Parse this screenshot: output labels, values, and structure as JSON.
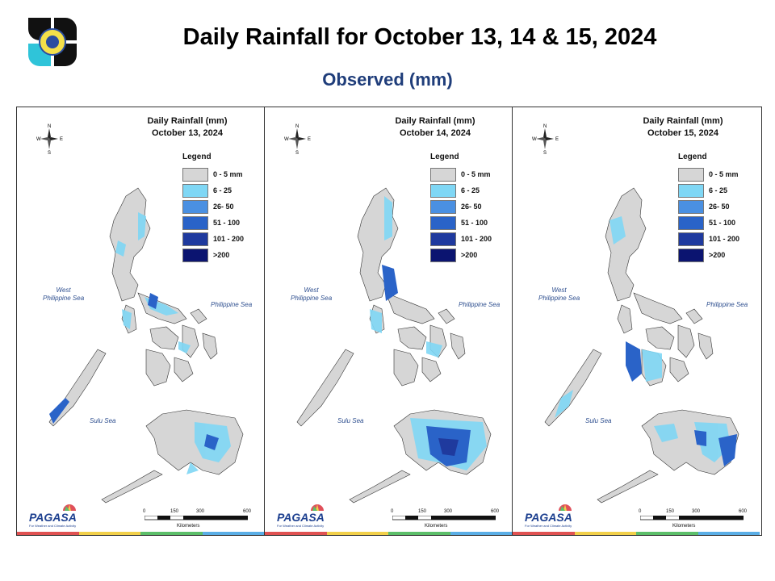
{
  "header": {
    "title": "Daily Rainfall for October 13, 14 & 15, 2024",
    "subtitle": "Observed (mm)"
  },
  "legend": {
    "title": "Legend",
    "items": [
      {
        "label": "0 - 5 mm",
        "color": "#d6d6d6"
      },
      {
        "label": "6 - 25",
        "color": "#7fd7f5"
      },
      {
        "label": "26- 50",
        "color": "#4a90e2"
      },
      {
        "label": "51 - 100",
        "color": "#2a63c8"
      },
      {
        "label": "101 - 200",
        "color": "#1f3a9e"
      },
      {
        "label": ">200",
        "color": "#0b1470"
      }
    ]
  },
  "map_labels": {
    "west_sea_line1": "West",
    "west_sea_line2": "Philippine Sea",
    "east_sea": "Philippine Sea",
    "sulu_sea": "Sulu Sea",
    "compass_n": "N",
    "compass_s": "S",
    "compass_e": "E",
    "compass_w": "W",
    "scale_0": "0",
    "scale_150": "150",
    "scale_300": "300",
    "scale_600": "600",
    "scale_unit": "Kilometers",
    "agency": "PAGASA",
    "agency_tagline": "For Weather and Climate Activity"
  },
  "panels": [
    {
      "title_line1": "Daily Rainfall (mm)",
      "title_line2": "October 13, 2024"
    },
    {
      "title_line1": "Daily Rainfall (mm)",
      "title_line2": "October 14, 2024"
    },
    {
      "title_line1": "Daily Rainfall (mm)",
      "title_line2": "October 15, 2024"
    }
  ],
  "stripe_colors": [
    "#e05252",
    "#f2d04a",
    "#5cbf6a",
    "#5aaee6"
  ]
}
